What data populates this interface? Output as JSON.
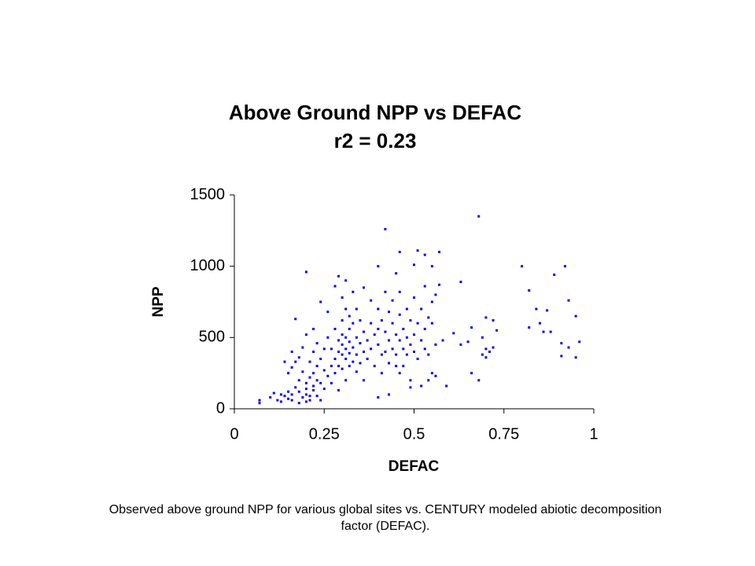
{
  "chart_data": {
    "type": "scatter",
    "title": "Above Ground NPP vs DEFAC",
    "subtitle": "r2 = 0.23",
    "x_label": "DEFAC",
    "y_label": "NPP",
    "caption": "Observed above ground NPP for various global sites vs. CENTURY modeled abiotic decomposition factor (DEFAC).",
    "color": "#0000ff",
    "xlim": [
      0,
      1
    ],
    "xticks": [
      0,
      0.25,
      0.5,
      0.75,
      1
    ],
    "ylim": [
      0,
      1500
    ],
    "yticks": [
      0,
      500,
      1000,
      1500
    ],
    "grid": false,
    "x": [
      0.68,
      0.42,
      0.46,
      0.51,
      0.53,
      0.57,
      0.2,
      0.29,
      0.31,
      0.4,
      0.45,
      0.5,
      0.55,
      0.63,
      0.57,
      0.8,
      0.89,
      0.92,
      0.82,
      0.93,
      0.84,
      0.87,
      0.95,
      0.85,
      0.82,
      0.88,
      0.86,
      0.91,
      0.93,
      0.96,
      0.91,
      0.95,
      0.7,
      0.72,
      0.73,
      0.66,
      0.69,
      0.65,
      0.63,
      0.7,
      0.71,
      0.72,
      0.7,
      0.69,
      0.66,
      0.68,
      0.61,
      0.58,
      0.59,
      0.55,
      0.56,
      0.54,
      0.52,
      0.49,
      0.43,
      0.4,
      0.07,
      0.07,
      0.1,
      0.11,
      0.12,
      0.13,
      0.14,
      0.15,
      0.16,
      0.17,
      0.17,
      0.18,
      0.16,
      0.15,
      0.14,
      0.18,
      0.18,
      0.19,
      0.19,
      0.2,
      0.2,
      0.2,
      0.2,
      0.21,
      0.21,
      0.21,
      0.21,
      0.22,
      0.22,
      0.22,
      0.22,
      0.23,
      0.23,
      0.23,
      0.23,
      0.24,
      0.24,
      0.24,
      0.25,
      0.25,
      0.25,
      0.24,
      0.26,
      0.26,
      0.26,
      0.27,
      0.27,
      0.27,
      0.28,
      0.28,
      0.28,
      0.28,
      0.29,
      0.29,
      0.29,
      0.29,
      0.3,
      0.3,
      0.3,
      0.3,
      0.3,
      0.3,
      0.31,
      0.31,
      0.31,
      0.31,
      0.31,
      0.32,
      0.32,
      0.32,
      0.32,
      0.32,
      0.33,
      0.33,
      0.33,
      0.33,
      0.34,
      0.34,
      0.34,
      0.34,
      0.35,
      0.35,
      0.35,
      0.36,
      0.36,
      0.36,
      0.36,
      0.37,
      0.37,
      0.38,
      0.38,
      0.38,
      0.39,
      0.39,
      0.4,
      0.4,
      0.4,
      0.41,
      0.41,
      0.41,
      0.42,
      0.42,
      0.42,
      0.43,
      0.43,
      0.43,
      0.44,
      0.44,
      0.44,
      0.45,
      0.45,
      0.45,
      0.46,
      0.46,
      0.46,
      0.47,
      0.47,
      0.47,
      0.48,
      0.48,
      0.48,
      0.49,
      0.49,
      0.5,
      0.5,
      0.5,
      0.51,
      0.51,
      0.52,
      0.52,
      0.53,
      0.53,
      0.53,
      0.54,
      0.54,
      0.55,
      0.55,
      0.56,
      0.56,
      0.49,
      0.46,
      0.16,
      0.17,
      0.19,
      0.2,
      0.22,
      0.13,
      0.15,
      0.16,
      0.18
    ],
    "values": [
      1350,
      1260,
      1100,
      1110,
      1080,
      1100,
      960,
      930,
      900,
      1000,
      950,
      1010,
      1000,
      890,
      870,
      1000,
      940,
      1000,
      830,
      760,
      700,
      690,
      650,
      600,
      570,
      540,
      540,
      460,
      430,
      470,
      370,
      360,
      640,
      620,
      550,
      570,
      500,
      470,
      450,
      420,
      400,
      430,
      360,
      380,
      250,
      200,
      530,
      480,
      160,
      250,
      230,
      200,
      160,
      150,
      100,
      80,
      60,
      40,
      80,
      110,
      60,
      100,
      90,
      70,
      100,
      150,
      630,
      360,
      290,
      250,
      330,
      200,
      120,
      80,
      260,
      180,
      140,
      50,
      100,
      220,
      330,
      90,
      60,
      160,
      400,
      250,
      130,
      300,
      200,
      90,
      460,
      350,
      180,
      60,
      270,
      420,
      140,
      750,
      680,
      500,
      230,
      300,
      420,
      180,
      860,
      560,
      350,
      250,
      480,
      400,
      300,
      130,
      780,
      620,
      520,
      450,
      380,
      280,
      700,
      500,
      420,
      350,
      200,
      650,
      560,
      470,
      390,
      300,
      820,
      600,
      430,
      330,
      700,
      500,
      380,
      260,
      620,
      460,
      320,
      850,
      540,
      400,
      200,
      480,
      350,
      760,
      600,
      420,
      520,
      300,
      700,
      560,
      450,
      380,
      620,
      250,
      820,
      540,
      400,
      680,
      480,
      320,
      600,
      420,
      760,
      520,
      380,
      300,
      660,
      480,
      820,
      560,
      420,
      300,
      700,
      500,
      380,
      620,
      450,
      780,
      520,
      400,
      600,
      350,
      700,
      480,
      860,
      560,
      420,
      640,
      380,
      750,
      600,
      450,
      800,
      200,
      250,
      400,
      330,
      430,
      520,
      560,
      50,
      120,
      60,
      40
    ]
  }
}
